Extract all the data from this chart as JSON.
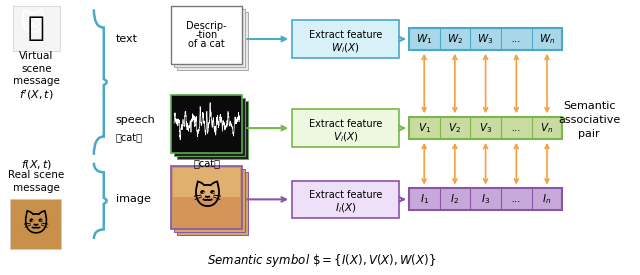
{
  "bg_color": "#ffffff",
  "color_blue": "#a8d8e8",
  "color_blue_border": "#4aa8c8",
  "color_blue_dark": "#2196a8",
  "color_green": "#c8dba0",
  "color_green_border": "#7ab648",
  "color_purple": "#c8a8d8",
  "color_purple_border": "#8855aa",
  "color_orange": "#f5a040",
  "W_cells": [
    "$W_1$",
    "$W_2$",
    "$W_3$",
    "...",
    "$W_n$"
  ],
  "V_cells": [
    "$V_1$",
    "$V_2$",
    "$V_3$",
    "...",
    "$V_n$"
  ],
  "I_cells": [
    "$I_1$",
    "$I_2$",
    "$I_3$",
    "...",
    "$I_n$"
  ]
}
